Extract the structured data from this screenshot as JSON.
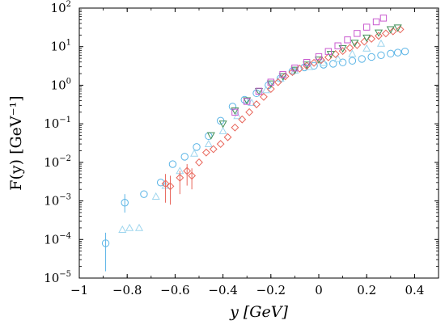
{
  "chart_data": {
    "type": "scatter",
    "title": "",
    "xlabel": "y [GeV]",
    "ylabel": "F(y) [GeV⁻¹]",
    "xlim": [
      -1.0,
      0.5
    ],
    "ylim_log10": [
      -5,
      2
    ],
    "yscale": "log",
    "grid": false,
    "legend": "none",
    "x_ticks": [
      {
        "value": -1.0,
        "label": "−1"
      },
      {
        "value": -0.8,
        "label": "−0.8"
      },
      {
        "value": -0.6,
        "label": "−0.6"
      },
      {
        "value": -0.4,
        "label": "−0.4"
      },
      {
        "value": -0.2,
        "label": "−0.2"
      },
      {
        "value": 0.0,
        "label": "0"
      },
      {
        "value": 0.2,
        "label": "0.2"
      },
      {
        "value": 0.4,
        "label": "0.4"
      }
    ],
    "y_ticks": [
      {
        "exp": 2,
        "base": "10",
        "sup": "2"
      },
      {
        "exp": 1,
        "base": "10",
        "sup": "1"
      },
      {
        "exp": 0,
        "base": "10",
        "sup": "0"
      },
      {
        "exp": -1,
        "base": "10",
        "sup": "−1"
      },
      {
        "exp": -2,
        "base": "10",
        "sup": "−2"
      },
      {
        "exp": -3,
        "base": "10",
        "sup": "−3"
      },
      {
        "exp": -4,
        "base": "10",
        "sup": "−4"
      },
      {
        "exp": -5,
        "base": "10",
        "sup": "−5"
      }
    ],
    "series": [
      {
        "color": "#5ab4e6",
        "marker": "circle",
        "points": [
          {
            "x": -0.89,
            "y": 8e-05,
            "lo": 1.5e-05,
            "hi": 0.00015
          },
          {
            "x": -0.81,
            "y": 0.0009,
            "lo": 0.0005,
            "hi": 0.0015
          },
          {
            "x": -0.73,
            "y": 0.0015
          },
          {
            "x": -0.66,
            "y": 0.003
          },
          {
            "x": -0.61,
            "y": 0.009
          },
          {
            "x": -0.56,
            "y": 0.014
          },
          {
            "x": -0.51,
            "y": 0.025
          },
          {
            "x": -0.46,
            "y": 0.048
          },
          {
            "x": -0.41,
            "y": 0.12
          },
          {
            "x": -0.36,
            "y": 0.28
          },
          {
            "x": -0.31,
            "y": 0.42
          },
          {
            "x": -0.26,
            "y": 0.62
          },
          {
            "x": -0.21,
            "y": 1.0
          },
          {
            "x": -0.16,
            "y": 1.5
          },
          {
            "x": -0.11,
            "y": 2.3
          },
          {
            "x": -0.06,
            "y": 2.9
          },
          {
            "x": -0.02,
            "y": 3.2
          },
          {
            "x": 0.02,
            "y": 3.4
          },
          {
            "x": 0.06,
            "y": 3.6
          },
          {
            "x": 0.1,
            "y": 3.9
          },
          {
            "x": 0.14,
            "y": 4.3
          },
          {
            "x": 0.18,
            "y": 4.8
          },
          {
            "x": 0.22,
            "y": 5.4
          },
          {
            "x": 0.26,
            "y": 6.0
          },
          {
            "x": 0.3,
            "y": 6.6
          },
          {
            "x": 0.33,
            "y": 7.0
          },
          {
            "x": 0.36,
            "y": 7.5
          }
        ]
      },
      {
        "color": "#9fd6ee",
        "marker": "triangle-up",
        "points": [
          {
            "x": -0.82,
            "y": 0.00018
          },
          {
            "x": -0.79,
            "y": 0.0002
          },
          {
            "x": -0.75,
            "y": 0.0002
          },
          {
            "x": -0.68,
            "y": 0.0013
          },
          {
            "x": -0.64,
            "y": 0.0025
          },
          {
            "x": -0.58,
            "y": 0.006
          },
          {
            "x": -0.52,
            "y": 0.017
          },
          {
            "x": -0.46,
            "y": 0.03
          },
          {
            "x": -0.4,
            "y": 0.065
          },
          {
            "x": -0.34,
            "y": 0.16
          },
          {
            "x": -0.28,
            "y": 0.35
          },
          {
            "x": -0.22,
            "y": 0.75
          },
          {
            "x": -0.16,
            "y": 1.5
          },
          {
            "x": -0.1,
            "y": 2.4
          },
          {
            "x": -0.04,
            "y": 3.0
          },
          {
            "x": 0.02,
            "y": 3.8
          },
          {
            "x": 0.08,
            "y": 4.8
          },
          {
            "x": 0.14,
            "y": 6.5
          },
          {
            "x": 0.2,
            "y": 9.0
          },
          {
            "x": 0.26,
            "y": 12
          }
        ]
      },
      {
        "color": "#e8655a",
        "marker": "diamond",
        "points": [
          {
            "x": -0.64,
            "y": 0.0028,
            "lo": 0.0009,
            "hi": 0.005
          },
          {
            "x": -0.62,
            "y": 0.0024,
            "lo": 0.0008,
            "hi": 0.0045
          },
          {
            "x": -0.58,
            "y": 0.004,
            "lo": 0.0015,
            "hi": 0.006
          },
          {
            "x": -0.55,
            "y": 0.006,
            "lo": 0.0025,
            "hi": 0.009
          },
          {
            "x": -0.53,
            "y": 0.0045,
            "lo": 0.002,
            "hi": 0.007
          },
          {
            "x": -0.5,
            "y": 0.01
          },
          {
            "x": -0.47,
            "y": 0.018
          },
          {
            "x": -0.44,
            "y": 0.022
          },
          {
            "x": -0.41,
            "y": 0.03
          },
          {
            "x": -0.38,
            "y": 0.045
          },
          {
            "x": -0.35,
            "y": 0.08
          },
          {
            "x": -0.32,
            "y": 0.13
          },
          {
            "x": -0.29,
            "y": 0.2
          },
          {
            "x": -0.26,
            "y": 0.32
          },
          {
            "x": -0.23,
            "y": 0.5
          },
          {
            "x": -0.2,
            "y": 0.8
          },
          {
            "x": -0.17,
            "y": 1.2
          },
          {
            "x": -0.14,
            "y": 1.7
          },
          {
            "x": -0.11,
            "y": 2.2
          },
          {
            "x": -0.08,
            "y": 2.7
          },
          {
            "x": -0.05,
            "y": 3.2
          },
          {
            "x": -0.02,
            "y": 3.8
          },
          {
            "x": 0.01,
            "y": 4.5
          },
          {
            "x": 0.04,
            "y": 5.3
          },
          {
            "x": 0.07,
            "y": 6.4
          },
          {
            "x": 0.1,
            "y": 7.7
          },
          {
            "x": 0.13,
            "y": 9.3
          },
          {
            "x": 0.16,
            "y": 11
          },
          {
            "x": 0.19,
            "y": 13.5
          },
          {
            "x": 0.22,
            "y": 16
          },
          {
            "x": 0.25,
            "y": 19
          },
          {
            "x": 0.28,
            "y": 22
          },
          {
            "x": 0.31,
            "y": 25
          },
          {
            "x": 0.34,
            "y": 28
          }
        ]
      },
      {
        "color": "#3f8f56",
        "marker": "triangle-down",
        "points": [
          {
            "x": -0.45,
            "y": 0.05
          },
          {
            "x": -0.4,
            "y": 0.1
          },
          {
            "x": -0.35,
            "y": 0.22
          },
          {
            "x": -0.3,
            "y": 0.4
          },
          {
            "x": -0.25,
            "y": 0.7
          },
          {
            "x": -0.2,
            "y": 1.1
          },
          {
            "x": -0.15,
            "y": 1.7
          },
          {
            "x": -0.1,
            "y": 2.5
          },
          {
            "x": -0.05,
            "y": 3.4
          },
          {
            "x": 0.0,
            "y": 4.6
          },
          {
            "x": 0.05,
            "y": 6.4
          },
          {
            "x": 0.1,
            "y": 9.0
          },
          {
            "x": 0.15,
            "y": 12.5
          },
          {
            "x": 0.2,
            "y": 17
          },
          {
            "x": 0.25,
            "y": 23
          },
          {
            "x": 0.3,
            "y": 28
          },
          {
            "x": 0.33,
            "y": 31
          }
        ]
      },
      {
        "color": "#c95acf",
        "marker": "square",
        "points": [
          {
            "x": -0.35,
            "y": 0.2
          },
          {
            "x": -0.3,
            "y": 0.38
          },
          {
            "x": -0.25,
            "y": 0.7
          },
          {
            "x": -0.2,
            "y": 1.2
          },
          {
            "x": -0.15,
            "y": 1.9
          },
          {
            "x": -0.1,
            "y": 2.8
          },
          {
            "x": -0.05,
            "y": 3.9
          },
          {
            "x": 0.0,
            "y": 5.5
          },
          {
            "x": 0.04,
            "y": 7.5
          },
          {
            "x": 0.08,
            "y": 10.5
          },
          {
            "x": 0.12,
            "y": 15
          },
          {
            "x": 0.16,
            "y": 22
          },
          {
            "x": 0.2,
            "y": 32
          },
          {
            "x": 0.24,
            "y": 44
          },
          {
            "x": 0.27,
            "y": 55
          }
        ]
      }
    ]
  }
}
